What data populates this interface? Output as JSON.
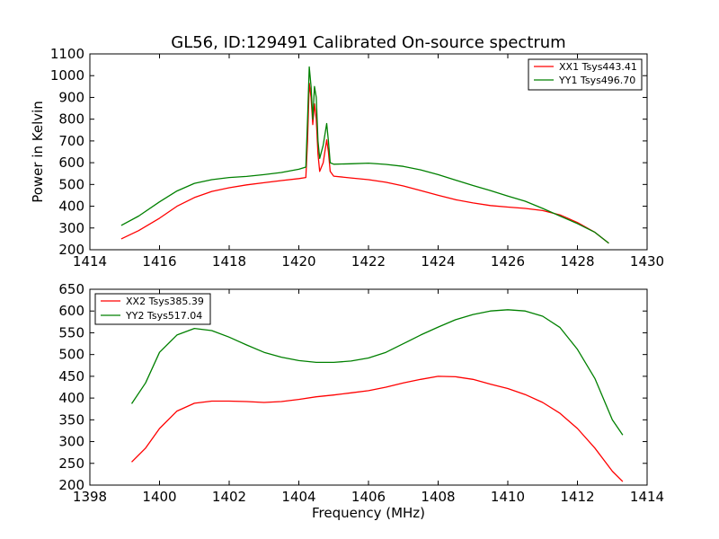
{
  "chart_data": [
    {
      "type": "line",
      "title": "GL56, ID:129491 Calibrated On-source spectrum",
      "xlabel": "",
      "ylabel": "Power in Kelvin",
      "xlim": [
        1414,
        1430
      ],
      "ylim": [
        200,
        1100
      ],
      "xticks": [
        "1414",
        "1416",
        "1418",
        "1420",
        "1422",
        "1424",
        "1426",
        "1428",
        "1430"
      ],
      "yticks": [
        "200",
        "300",
        "400",
        "500",
        "600",
        "700",
        "800",
        "900",
        "1000",
        "1100"
      ],
      "grid": false,
      "legend_position": "top-right",
      "series": [
        {
          "name": "XX1 Tsys443.41",
          "color": "#ff0000",
          "points": [
            [
              1414.9,
              250
            ],
            [
              1415.4,
              288
            ],
            [
              1416.0,
              345
            ],
            [
              1416.5,
              400
            ],
            [
              1417.0,
              440
            ],
            [
              1417.5,
              468
            ],
            [
              1418.0,
              485
            ],
            [
              1418.5,
              498
            ],
            [
              1419.0,
              508
            ],
            [
              1419.5,
              518
            ],
            [
              1420.0,
              527
            ],
            [
              1420.2,
              532
            ],
            [
              1420.25,
              700
            ],
            [
              1420.3,
              965
            ],
            [
              1420.35,
              900
            ],
            [
              1420.4,
              775
            ],
            [
              1420.45,
              870
            ],
            [
              1420.5,
              800
            ],
            [
              1420.55,
              640
            ],
            [
              1420.6,
              560
            ],
            [
              1420.7,
              600
            ],
            [
              1420.8,
              705
            ],
            [
              1420.85,
              650
            ],
            [
              1420.9,
              560
            ],
            [
              1421.0,
              538
            ],
            [
              1421.5,
              530
            ],
            [
              1422.0,
              522
            ],
            [
              1422.5,
              510
            ],
            [
              1423.0,
              493
            ],
            [
              1423.5,
              472
            ],
            [
              1424.0,
              450
            ],
            [
              1424.5,
              430
            ],
            [
              1425.0,
              415
            ],
            [
              1425.5,
              403
            ],
            [
              1426.0,
              396
            ],
            [
              1426.5,
              390
            ],
            [
              1427.0,
              380
            ],
            [
              1427.5,
              360
            ],
            [
              1428.0,
              325
            ],
            [
              1428.5,
              280
            ],
            [
              1428.9,
              230
            ]
          ]
        },
        {
          "name": "YY1 Tsys496.70",
          "color": "#008000",
          "points": [
            [
              1414.9,
              312
            ],
            [
              1415.4,
              355
            ],
            [
              1416.0,
              420
            ],
            [
              1416.5,
              470
            ],
            [
              1417.0,
              505
            ],
            [
              1417.5,
              522
            ],
            [
              1418.0,
              532
            ],
            [
              1418.5,
              537
            ],
            [
              1419.0,
              545
            ],
            [
              1419.5,
              555
            ],
            [
              1420.0,
              570
            ],
            [
              1420.2,
              580
            ],
            [
              1420.25,
              800
            ],
            [
              1420.3,
              1040
            ],
            [
              1420.35,
              950
            ],
            [
              1420.4,
              800
            ],
            [
              1420.45,
              950
            ],
            [
              1420.5,
              900
            ],
            [
              1420.55,
              700
            ],
            [
              1420.6,
              620
            ],
            [
              1420.7,
              680
            ],
            [
              1420.8,
              780
            ],
            [
              1420.85,
              700
            ],
            [
              1420.9,
              600
            ],
            [
              1421.0,
              593
            ],
            [
              1421.5,
              595
            ],
            [
              1422.0,
              598
            ],
            [
              1422.5,
              592
            ],
            [
              1423.0,
              583
            ],
            [
              1423.5,
              567
            ],
            [
              1424.0,
              545
            ],
            [
              1424.5,
              520
            ],
            [
              1425.0,
              495
            ],
            [
              1425.5,
              472
            ],
            [
              1426.0,
              447
            ],
            [
              1426.5,
              423
            ],
            [
              1427.0,
              390
            ],
            [
              1427.5,
              355
            ],
            [
              1428.0,
              320
            ],
            [
              1428.5,
              280
            ],
            [
              1428.9,
              230
            ]
          ]
        }
      ]
    },
    {
      "type": "line",
      "title": "",
      "xlabel": "Frequency (MHz)",
      "ylabel": "",
      "xlim": [
        1398,
        1414
      ],
      "ylim": [
        200,
        650
      ],
      "xticks": [
        "1398",
        "1400",
        "1402",
        "1404",
        "1406",
        "1408",
        "1410",
        "1412",
        "1414"
      ],
      "yticks": [
        "200",
        "250",
        "300",
        "350",
        "400",
        "450",
        "500",
        "550",
        "600",
        "650"
      ],
      "grid": false,
      "legend_position": "top-left",
      "series": [
        {
          "name": "XX2 Tsys385.39",
          "color": "#ff0000",
          "points": [
            [
              1399.2,
              253
            ],
            [
              1399.6,
              285
            ],
            [
              1400.0,
              330
            ],
            [
              1400.5,
              370
            ],
            [
              1401.0,
              388
            ],
            [
              1401.5,
              393
            ],
            [
              1402.0,
              393
            ],
            [
              1402.5,
              392
            ],
            [
              1403.0,
              390
            ],
            [
              1403.5,
              392
            ],
            [
              1404.0,
              397
            ],
            [
              1404.5,
              403
            ],
            [
              1405.0,
              407
            ],
            [
              1405.5,
              412
            ],
            [
              1406.0,
              417
            ],
            [
              1406.5,
              425
            ],
            [
              1407.0,
              435
            ],
            [
              1407.5,
              443
            ],
            [
              1408.0,
              450
            ],
            [
              1408.5,
              449
            ],
            [
              1409.0,
              443
            ],
            [
              1409.5,
              432
            ],
            [
              1410.0,
              422
            ],
            [
              1410.5,
              408
            ],
            [
              1411.0,
              390
            ],
            [
              1411.5,
              365
            ],
            [
              1412.0,
              330
            ],
            [
              1412.5,
              285
            ],
            [
              1413.0,
              232
            ],
            [
              1413.3,
              208
            ]
          ]
        },
        {
          "name": "YY2 Tsys517.04",
          "color": "#008000",
          "points": [
            [
              1399.2,
              387
            ],
            [
              1399.6,
              435
            ],
            [
              1400.0,
              505
            ],
            [
              1400.5,
              545
            ],
            [
              1401.0,
              560
            ],
            [
              1401.5,
              555
            ],
            [
              1402.0,
              540
            ],
            [
              1402.5,
              522
            ],
            [
              1403.0,
              505
            ],
            [
              1403.5,
              494
            ],
            [
              1404.0,
              486
            ],
            [
              1404.5,
              482
            ],
            [
              1405.0,
              482
            ],
            [
              1405.5,
              485
            ],
            [
              1406.0,
              492
            ],
            [
              1406.5,
              505
            ],
            [
              1407.0,
              525
            ],
            [
              1407.5,
              545
            ],
            [
              1408.0,
              563
            ],
            [
              1408.5,
              580
            ],
            [
              1409.0,
              592
            ],
            [
              1409.5,
              600
            ],
            [
              1410.0,
              603
            ],
            [
              1410.5,
              600
            ],
            [
              1411.0,
              588
            ],
            [
              1411.5,
              562
            ],
            [
              1412.0,
              512
            ],
            [
              1412.5,
              445
            ],
            [
              1413.0,
              350
            ],
            [
              1413.3,
              315
            ]
          ]
        }
      ]
    }
  ]
}
